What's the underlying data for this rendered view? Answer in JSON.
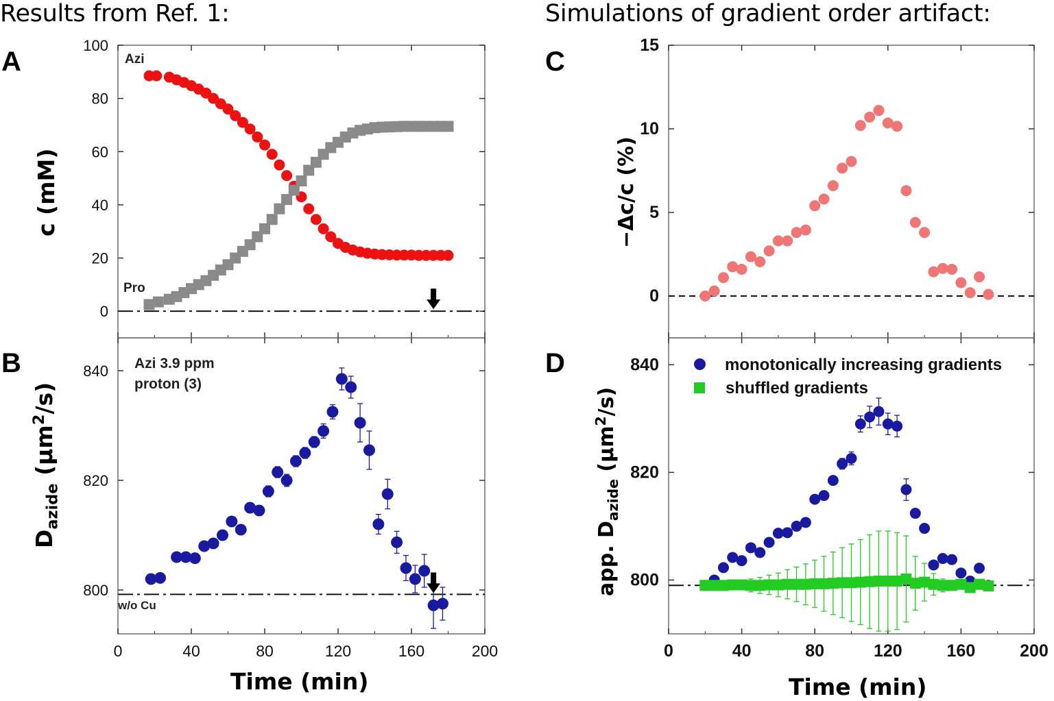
{
  "headings": {
    "left": "Results from Ref. 1:",
    "right": "Simulations of gradient order artifact:"
  },
  "panels": {
    "A": {
      "letter": "A",
      "ylabel": "c (mM)",
      "label_azi": "Azi",
      "label_pro": "Pro"
    },
    "B": {
      "letter": "B",
      "ylabel_main": "D",
      "ylabel_sub": "azide",
      "ylabel_unit_pre": " (μm",
      "ylabel_sup": "2",
      "ylabel_unit_post": "/s)",
      "note_line1": "Azi 3.9 ppm",
      "note_line2": "proton (3)",
      "baseline_label": "w/o Cu"
    },
    "C": {
      "letter": "C",
      "ylabel": "−Δc/c (%)"
    },
    "D": {
      "letter": "D",
      "ylabel_pre": "app. D",
      "ylabel_sub": "azide",
      "ylabel_unit_pre": " (μm",
      "ylabel_sup": "2",
      "ylabel_unit_post": "/s)"
    }
  },
  "xlabel_left": "Time (min)",
  "xlabel_right": "Time (min)",
  "colors": {
    "azi": "#ee1111",
    "pro": "#8a8a8a",
    "blue": "#1a1aa0",
    "pink": "#f07575",
    "green": "#22cc22",
    "frame": "#777777"
  },
  "chart_data": [
    {
      "panel": "A",
      "type": "scatter",
      "xlim": [
        0,
        200
      ],
      "ylim": [
        -10,
        100
      ],
      "xticks": [
        0,
        40,
        80,
        120,
        160,
        200
      ],
      "yticks": [
        0,
        20,
        40,
        60,
        80,
        100
      ],
      "series": [
        {
          "name": "Azi",
          "x": [
            17,
            21,
            28,
            32,
            36,
            40,
            44,
            48,
            52,
            56,
            60,
            64,
            68,
            72,
            76,
            80,
            84,
            88,
            92,
            96,
            100,
            104,
            108,
            112,
            116,
            120,
            124,
            128,
            132,
            136,
            140,
            144,
            148,
            152,
            156,
            160,
            164,
            168,
            172,
            176,
            180
          ],
          "y": [
            88.5,
            88.5,
            88,
            87,
            86,
            84.8,
            83.5,
            82,
            80,
            78,
            76,
            73.5,
            71,
            68.5,
            65.5,
            62.5,
            59,
            55,
            51,
            47,
            43,
            38.5,
            34.5,
            31,
            28,
            25.5,
            24,
            23,
            22.3,
            21.8,
            21.5,
            21.3,
            21.2,
            21.1,
            21.1,
            21.1,
            21.0,
            21.0,
            21.0,
            21.0,
            21.0
          ]
        },
        {
          "name": "Pro",
          "x": [
            17,
            22,
            28,
            32,
            36,
            40,
            44,
            48,
            52,
            56,
            60,
            64,
            68,
            72,
            76,
            80,
            84,
            88,
            92,
            96,
            100,
            104,
            108,
            112,
            116,
            120,
            124,
            128,
            132,
            136,
            140,
            144,
            148,
            152,
            156,
            160,
            164,
            168,
            172,
            176,
            180
          ],
          "y": [
            2.5,
            3.5,
            4.5,
            5.5,
            7,
            8.5,
            10,
            11.5,
            13.5,
            15.5,
            17.5,
            20,
            22.5,
            25,
            28,
            31,
            34.5,
            38.5,
            42,
            45.5,
            49,
            53,
            56,
            59,
            61.5,
            63.5,
            65.5,
            67,
            68,
            68.5,
            69,
            69.2,
            69.3,
            69.4,
            69.5,
            69.5,
            69.5,
            69.5,
            69.5,
            69.5,
            69.5
          ]
        }
      ],
      "baseline_y": 0
    },
    {
      "panel": "B",
      "type": "scatter",
      "xlim": [
        0,
        200
      ],
      "ylim": [
        792,
        846
      ],
      "xticks": [
        0,
        40,
        80,
        120,
        160,
        200
      ],
      "yticks": [
        800,
        820,
        840
      ],
      "series": [
        {
          "name": "Azi 3.9 ppm proton (3)",
          "x": [
            18,
            23,
            32,
            37,
            42,
            47,
            52,
            57,
            62,
            67,
            72,
            77,
            82,
            87,
            92,
            97,
            102,
            107,
            112,
            117,
            122,
            127,
            132,
            137,
            142,
            147,
            152,
            157,
            162,
            167,
            172,
            177
          ],
          "y": [
            802,
            802.2,
            806,
            806,
            805.8,
            808,
            808.5,
            810,
            812.5,
            811,
            815,
            814.5,
            818,
            821.5,
            820,
            823.5,
            825,
            827,
            829,
            832.5,
            838.5,
            837,
            830.5,
            825.5,
            812,
            817.5,
            808.7,
            804,
            802,
            803.5,
            797.2,
            797.5
          ],
          "err": [
            0.6,
            0.6,
            0.6,
            0.6,
            0.6,
            0.6,
            0.6,
            0.6,
            0.8,
            0.8,
            0.9,
            0.9,
            1,
            1,
            1.1,
            1,
            1,
            1,
            1.3,
            1.3,
            2,
            2,
            3.5,
            3.5,
            1.8,
            2.7,
            2,
            2.3,
            2.5,
            3,
            4.2,
            3
          ]
        }
      ],
      "baseline_y": 799.2
    },
    {
      "panel": "C",
      "type": "scatter",
      "xlim": [
        0,
        200
      ],
      "ylim": [
        -2.5,
        15
      ],
      "xticks": [
        0,
        40,
        80,
        120,
        160,
        200
      ],
      "yticks": [
        0,
        5,
        10,
        15
      ],
      "series": [
        {
          "name": "",
          "x": [
            20,
            25,
            30,
            35,
            40,
            45,
            50,
            55,
            60,
            65,
            70,
            75,
            80,
            85,
            90,
            95,
            100,
            105,
            110,
            115,
            120,
            125,
            130,
            135,
            140,
            145,
            150,
            155,
            160,
            165,
            170,
            175
          ],
          "y": [
            0,
            0.3,
            1.1,
            1.75,
            1.6,
            2.35,
            2.05,
            2.7,
            3.3,
            3.3,
            3.8,
            3.95,
            5.4,
            5.8,
            6.6,
            7.65,
            8.05,
            10.2,
            10.7,
            11.1,
            10.35,
            10.15,
            6.3,
            4.4,
            3.8,
            1.45,
            1.65,
            1.6,
            0.8,
            0.2,
            1.15,
            0.1
          ]
        }
      ],
      "baseline_y": 0
    },
    {
      "panel": "D",
      "type": "scatter",
      "xlim": [
        0,
        200
      ],
      "ylim": [
        790,
        845
      ],
      "xticks": [
        0,
        40,
        80,
        120,
        160,
        200
      ],
      "yticks": [
        800,
        820,
        840
      ],
      "series": [
        {
          "name": "monotonically increasing gradients",
          "x": [
            20,
            25,
            30,
            35,
            40,
            45,
            50,
            55,
            60,
            65,
            70,
            75,
            80,
            85,
            90,
            95,
            100,
            105,
            110,
            115,
            120,
            125,
            130,
            135,
            140,
            145,
            150,
            155,
            160,
            165,
            170,
            175
          ],
          "y": [
            799,
            800,
            802.3,
            804.2,
            803.6,
            806,
            805.1,
            807,
            808.7,
            808.8,
            810,
            810.7,
            815,
            815.7,
            818.5,
            821.6,
            822.6,
            829,
            830.3,
            831.3,
            829,
            828.6,
            816.8,
            812.4,
            809.6,
            802.8,
            804,
            803.8,
            801.3,
            799.8,
            802.2,
            799
          ],
          "err": [
            0.4,
            0.4,
            0.4,
            0.4,
            0.4,
            0.4,
            0.4,
            0.4,
            0.5,
            0.5,
            0.5,
            0.5,
            0.6,
            0.6,
            0.8,
            1,
            1.2,
            1.5,
            2,
            2.5,
            2,
            2,
            2,
            0.8,
            0.6,
            0.4,
            0.4,
            0.4,
            0.4,
            0.4,
            0.4,
            0.4
          ]
        },
        {
          "name": "shuffled gradients",
          "x": [
            20,
            25,
            30,
            35,
            40,
            45,
            50,
            55,
            60,
            65,
            70,
            75,
            80,
            85,
            90,
            95,
            100,
            105,
            110,
            115,
            120,
            125,
            130,
            135,
            140,
            145,
            150,
            155,
            160,
            165,
            170,
            175
          ],
          "y": [
            799,
            799,
            799,
            799.1,
            799.1,
            799,
            799,
            799.1,
            799.1,
            799.2,
            799.2,
            799.2,
            799.3,
            799.3,
            799.4,
            799.5,
            799.5,
            799.6,
            799.7,
            799.8,
            799.8,
            799.8,
            800.2,
            799.4,
            799.6,
            799.2,
            799,
            799,
            799.2,
            798.6,
            799.2,
            798.9
          ],
          "err": [
            0.3,
            0.4,
            0.5,
            0.7,
            0.9,
            1.2,
            1.5,
            1.8,
            2.2,
            2.7,
            3.2,
            3.8,
            4.4,
            5.1,
            5.8,
            6.5,
            7.2,
            7.9,
            8.7,
            9.3,
            9.3,
            9,
            8,
            5,
            3.5,
            2,
            1.2,
            0.8,
            0.5,
            0.3,
            0.2,
            0.2
          ]
        }
      ],
      "baseline_y": 799
    }
  ]
}
